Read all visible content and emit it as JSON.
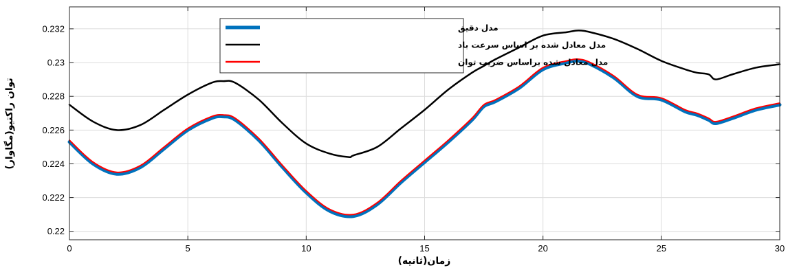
{
  "chart_data": {
    "type": "line",
    "xlabel": "زمان(ثانیه)",
    "ylabel": "توان راکتیو(مگاوار)",
    "xlim": [
      0,
      30
    ],
    "ylim": [
      0.2195,
      0.2333
    ],
    "xticks": [
      0,
      5,
      10,
      15,
      20,
      25,
      30
    ],
    "xtick_labels": [
      "0",
      "5",
      "10",
      "15",
      "20",
      "25",
      "30"
    ],
    "yticks": [
      0.22,
      0.222,
      0.224,
      0.226,
      0.228,
      0.23,
      0.232
    ],
    "ytick_labels": [
      "0.22",
      "0.222",
      "0.224",
      "0.226",
      "0.228",
      "0.23",
      "0.232"
    ],
    "grid": true,
    "legend_position": "top-center",
    "series": [
      {
        "name": "مدل دقیق",
        "color": "#0072bd",
        "x": [
          0,
          1,
          2,
          3,
          4,
          5,
          6,
          6.5,
          7,
          8,
          9,
          10,
          11,
          12,
          13,
          14,
          15,
          16,
          17,
          17.5,
          18,
          19,
          20,
          21,
          21.5,
          22,
          23,
          24,
          25,
          26,
          26.5,
          27,
          27.3,
          28,
          29,
          30
        ],
        "y": [
          0.2253,
          0.224,
          0.2234,
          0.2238,
          0.2249,
          0.226,
          0.2267,
          0.2268,
          0.2266,
          0.2254,
          0.2238,
          0.2223,
          0.2212,
          0.2209,
          0.2216,
          0.2229,
          0.2241,
          0.2253,
          0.2266,
          0.2274,
          0.2277,
          0.2285,
          0.2296,
          0.23,
          0.2301,
          0.2299,
          0.2291,
          0.228,
          0.2278,
          0.2271,
          0.2269,
          0.2266,
          0.2264,
          0.2267,
          0.2272,
          0.2275
        ]
      },
      {
        "name": "مدل معادل شده بر اساس سرعت باد",
        "color": "#000000",
        "x": [
          0,
          1,
          2,
          3,
          4,
          5,
          6,
          6.5,
          7,
          8,
          9,
          10,
          11,
          11.8,
          12,
          13,
          14,
          15,
          16,
          17,
          17.5,
          18,
          19,
          20,
          21,
          21.5,
          22,
          23,
          24,
          25,
          26,
          26.5,
          27,
          27.3,
          28,
          29,
          30
        ],
        "y": [
          0.2275,
          0.2265,
          0.226,
          0.2263,
          0.2272,
          0.2281,
          0.2288,
          0.2289,
          0.2288,
          0.2278,
          0.2264,
          0.2252,
          0.2246,
          0.2244,
          0.2245,
          0.225,
          0.2261,
          0.2272,
          0.2284,
          0.2294,
          0.2298,
          0.2302,
          0.2309,
          0.2316,
          0.2318,
          0.2319,
          0.2318,
          0.2314,
          0.2308,
          0.2301,
          0.2296,
          0.2294,
          0.2293,
          0.229,
          0.2293,
          0.2297,
          0.2299
        ]
      },
      {
        "name": "مدل معادل شده براساس ضریب توان",
        "color": "#ff0000",
        "x": [
          0,
          1,
          2,
          3,
          4,
          5,
          6,
          6.5,
          7,
          8,
          9,
          10,
          11,
          12,
          13,
          14,
          15,
          16,
          17,
          17.5,
          18,
          19,
          20,
          21,
          21.5,
          22,
          23,
          24,
          25,
          26,
          26.5,
          27,
          27.3,
          28,
          29,
          30
        ],
        "y": [
          0.2254,
          0.2241,
          0.2235,
          0.2239,
          0.225,
          0.2261,
          0.2268,
          0.2269,
          0.2267,
          0.2255,
          0.2239,
          0.2224,
          0.2213,
          0.221,
          0.2217,
          0.223,
          0.2242,
          0.2254,
          0.2267,
          0.2275,
          0.2278,
          0.2286,
          0.2297,
          0.2301,
          0.2302,
          0.23,
          0.2292,
          0.2281,
          0.2279,
          0.2272,
          0.227,
          0.2267,
          0.2265,
          0.2268,
          0.2273,
          0.2276
        ]
      }
    ]
  }
}
